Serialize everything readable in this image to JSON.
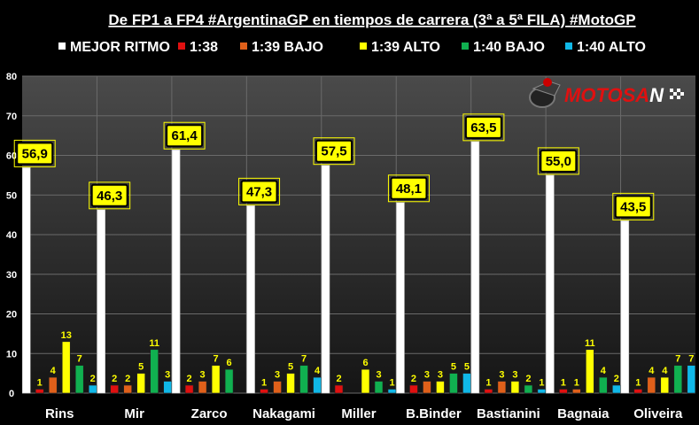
{
  "chart_data": {
    "type": "bar",
    "title": "De FP1 a FP4 #ArgentinaGP en tiempos de carrera (3ª a 5ª FILA) #MotoGP",
    "categories": [
      "Rins",
      "Mir",
      "Zarco",
      "Nakagami",
      "Miller",
      "B.Binder",
      "Bastianini",
      "Bagnaia",
      "Oliveira"
    ],
    "ylim": [
      0,
      80
    ],
    "yticks": [
      0,
      10,
      20,
      30,
      40,
      50,
      60,
      70,
      80
    ],
    "grid": true,
    "legend_position": "top",
    "series": [
      {
        "name": "MEJOR RITMO",
        "color": "#ffffff",
        "values": [
          56.9,
          46.3,
          61.4,
          47.3,
          57.5,
          48.1,
          63.5,
          55.0,
          43.5
        ],
        "labels": [
          "56,9",
          "46,3",
          "61,4",
          "47,3",
          "57,5",
          "48,1",
          "63,5",
          "55,0",
          "43,5"
        ]
      },
      {
        "name": "1:38",
        "color": "#e01010",
        "values": [
          1,
          2,
          2,
          1,
          2,
          2,
          1,
          1,
          1
        ],
        "labels": [
          "1",
          "2",
          "2",
          "1",
          "2",
          "2",
          "1",
          "1",
          "1"
        ]
      },
      {
        "name": "1:39 BAJO",
        "color": "#e0601a",
        "values": [
          4,
          2,
          3,
          3,
          0,
          3,
          3,
          1,
          4
        ],
        "labels": [
          "4",
          "2",
          "3",
          "3",
          "",
          "3",
          "3",
          "1",
          "4"
        ]
      },
      {
        "name": "1:39 ALTO",
        "color": "#ffff00",
        "values": [
          13,
          5,
          7,
          5,
          6,
          3,
          3,
          11,
          4
        ],
        "labels": [
          "13",
          "5",
          "7",
          "5",
          "6",
          "3",
          "3",
          "11",
          "4"
        ]
      },
      {
        "name": "1:40 BAJO",
        "color": "#10b050",
        "values": [
          7,
          11,
          6,
          7,
          3,
          5,
          2,
          4,
          7
        ],
        "labels": [
          "7",
          "11",
          "6",
          "7",
          "3",
          "5",
          "2",
          "4",
          "7"
        ]
      },
      {
        "name": "1:40 ALTO",
        "color": "#10b8e8",
        "values": [
          2,
          3,
          0,
          4,
          1,
          5,
          1,
          2,
          7
        ],
        "labels": [
          "2",
          "3",
          "",
          "4",
          "1",
          "5",
          "1",
          "2",
          "7"
        ]
      }
    ]
  },
  "logo": {
    "text": "MOTOSAN"
  }
}
